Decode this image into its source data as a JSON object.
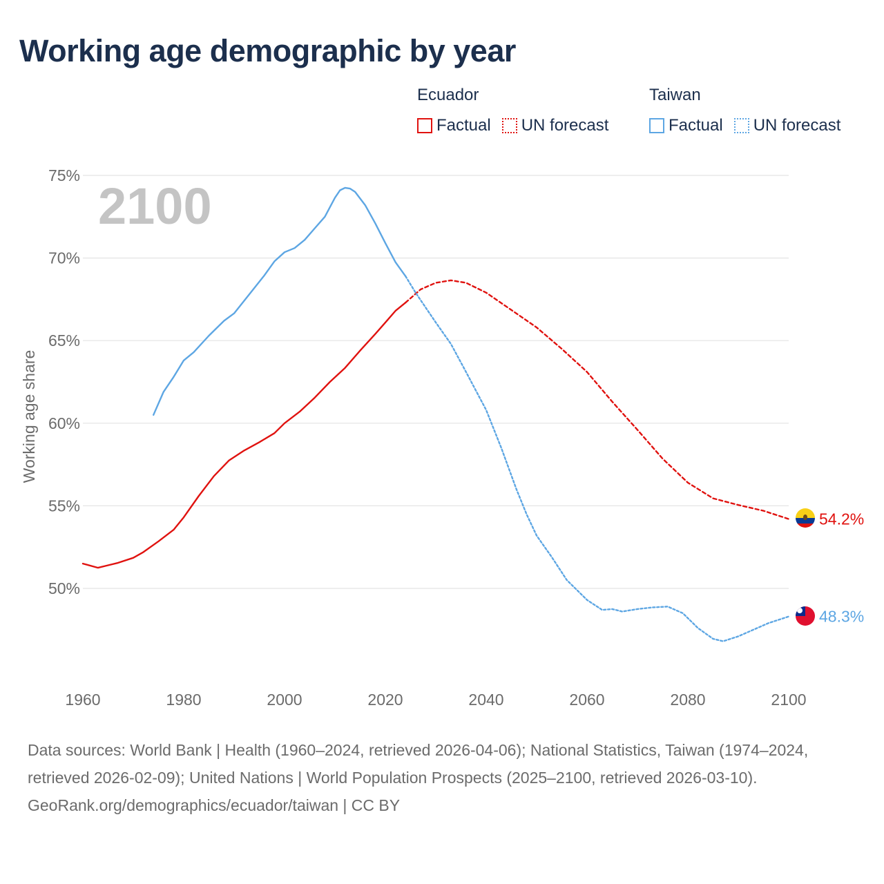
{
  "title": "Working age demographic by year",
  "legend": {
    "groups": [
      {
        "name": "Ecuador",
        "color": "#e0120f",
        "factual_label": "Factual",
        "forecast_label": "UN forecast"
      },
      {
        "name": "Taiwan",
        "color": "#5da6e3",
        "factual_label": "Factual",
        "forecast_label": "UN forecast"
      }
    ]
  },
  "year_watermark": "2100",
  "footer": {
    "sources": "Data sources: World Bank | Health (1960–2024, retrieved 2026-04-06); National Statistics, Taiwan (1974–2024, retrieved 2026-02-09); United Nations | World Population Prospects (2025–2100, retrieved 2026-03-10).",
    "credit": "GeoRank.org/demographics/ecuador/taiwan | CC BY"
  },
  "chart_data": {
    "type": "line",
    "title": "Working age demographic by year",
    "xlabel": "",
    "ylabel": "Working age share",
    "xlim": [
      1960,
      2100
    ],
    "ylim": [
      45,
      75
    ],
    "y_ticks": [
      50,
      55,
      60,
      65,
      70,
      75
    ],
    "y_tick_labels": [
      "50%",
      "55%",
      "60%",
      "65%",
      "70%",
      "75%"
    ],
    "x_ticks": [
      1960,
      1980,
      2000,
      2020,
      2040,
      2060,
      2080,
      2100
    ],
    "x_tick_labels": [
      "1960",
      "1980",
      "2000",
      "2020",
      "2040",
      "2060",
      "2080",
      "2100"
    ],
    "grid": true,
    "series": [
      {
        "name": "Ecuador",
        "kind": "factual",
        "color": "#e0120f",
        "dash": "solid",
        "x": [
          1960,
          1963,
          1965,
          1967,
          1970,
          1972,
          1975,
          1978,
          1980,
          1983,
          1986,
          1989,
          1992,
          1995,
          1998,
          2000,
          2003,
          2006,
          2009,
          2012,
          2015,
          2018,
          2020,
          2022,
          2024
        ],
        "y": [
          51.5,
          51.25,
          51.4,
          51.55,
          51.85,
          52.2,
          52.85,
          53.55,
          54.3,
          55.6,
          56.8,
          57.75,
          58.35,
          58.85,
          59.4,
          60.0,
          60.7,
          61.55,
          62.5,
          63.35,
          64.4,
          65.4,
          66.1,
          66.8,
          67.3
        ]
      },
      {
        "name": "Ecuador",
        "kind": "forecast",
        "color": "#e0120f",
        "dash": "dashed",
        "x": [
          2024,
          2027,
          2030,
          2033,
          2036,
          2040,
          2045,
          2050,
          2055,
          2060,
          2065,
          2070,
          2075,
          2080,
          2085,
          2090,
          2095,
          2100
        ],
        "y": [
          67.3,
          68.1,
          68.5,
          68.65,
          68.5,
          67.9,
          66.85,
          65.8,
          64.5,
          63.1,
          61.3,
          59.6,
          57.85,
          56.4,
          55.45,
          55.05,
          54.7,
          54.2
        ]
      },
      {
        "name": "Taiwan",
        "kind": "factual",
        "color": "#5da6e3",
        "dash": "solid",
        "x": [
          1974,
          1976,
          1978,
          1980,
          1982,
          1985,
          1988,
          1990,
          1993,
          1996,
          1998,
          2000,
          2002,
          2004,
          2006,
          2008,
          2010,
          2011,
          2012,
          2013,
          2014,
          2016,
          2018,
          2020,
          2022,
          2024
        ],
        "y": [
          60.5,
          61.9,
          62.8,
          63.8,
          64.3,
          65.3,
          66.2,
          66.65,
          67.8,
          68.95,
          69.8,
          70.35,
          70.6,
          71.1,
          71.8,
          72.5,
          73.65,
          74.1,
          74.25,
          74.2,
          74.0,
          73.2,
          72.1,
          70.9,
          69.75,
          68.9
        ]
      },
      {
        "name": "Taiwan",
        "kind": "forecast",
        "color": "#5da6e3",
        "dash": "dotted",
        "x": [
          2024,
          2026,
          2028,
          2030,
          2033,
          2036,
          2040,
          2043,
          2046,
          2048,
          2050,
          2053,
          2056,
          2060,
          2063,
          2065,
          2067,
          2070,
          2073,
          2076,
          2079,
          2082,
          2085,
          2087,
          2090,
          2093,
          2096,
          2100
        ],
        "y": [
          68.9,
          67.9,
          67.0,
          66.1,
          64.8,
          63.1,
          60.8,
          58.5,
          56.0,
          54.5,
          53.2,
          51.9,
          50.5,
          49.3,
          48.7,
          48.75,
          48.6,
          48.75,
          48.85,
          48.9,
          48.5,
          47.6,
          46.95,
          46.8,
          47.1,
          47.5,
          47.9,
          48.3
        ]
      }
    ],
    "end_labels": [
      {
        "series": "Ecuador",
        "value": 54.2,
        "label": "54.2%"
      },
      {
        "series": "Taiwan",
        "value": 48.3,
        "label": "48.3%"
      }
    ]
  }
}
